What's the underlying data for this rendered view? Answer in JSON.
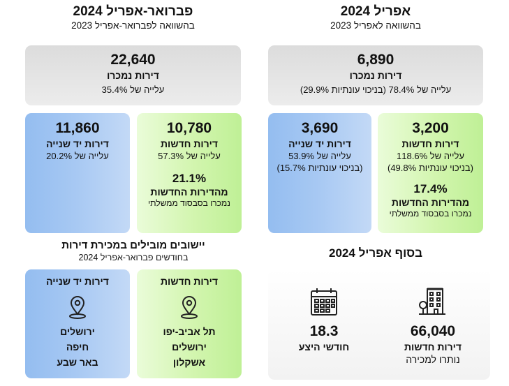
{
  "right_section": {
    "title": "אפריל 2024",
    "subtitle": "בהשוואה לאפריל 2023",
    "sold": {
      "value": "6,890",
      "label": "דירות נמכרו",
      "change": "עלייה של 78.4% (בניכוי עונתיות 29.9%)"
    },
    "new": {
      "value": "3,200",
      "label": "דירות חדשות",
      "change": "עלייה של 118.6%",
      "change2": "(בניכוי עונתיות 49.8%)",
      "pct": "17.4%",
      "pct_label": "מהדירות החדשות",
      "pct_note": "נמכרו בסבסוד ממשלתי"
    },
    "second_hand": {
      "value": "3,690",
      "label": "דירות יד שנייה",
      "change": "עלייה של 53.9%",
      "change2": "(בניכוי עונתיות 15.7%)"
    }
  },
  "left_section": {
    "title": "פברואר-אפריל 2024",
    "subtitle": "בהשוואה לפברואר-אפריל 2023",
    "sold": {
      "value": "22,640",
      "label": "דירות נמכרו",
      "change": "עלייה של 35.4%"
    },
    "new": {
      "value": "10,780",
      "label": "דירות חדשות",
      "change": "עלייה של 57.3%",
      "pct": "21.1%",
      "pct_label": "מהדירות החדשות",
      "pct_note": "נמכרו בסבסוד ממשלתי"
    },
    "second_hand": {
      "value": "11,860",
      "label": "דירות יד שנייה",
      "change": "עלייה של 20.2%"
    }
  },
  "end_april": {
    "title": "בסוף אפריל 2024",
    "apartments": {
      "value": "66,040",
      "label1": "דירות חדשות",
      "label2": "נותרו למכירה",
      "icon": "building-icon"
    },
    "months": {
      "value": "18.3",
      "label": "חודשי היצע",
      "icon": "calendar-icon"
    }
  },
  "leading": {
    "title": "יישובים מובילים במכירת דירות",
    "subtitle": "בחודשים פברואר-אפריל 2024",
    "new": {
      "label": "דירות חדשות",
      "cities": [
        "תל אביב-יפו",
        "ירושלים",
        "אשקלון"
      ],
      "icon": "location-pin-icon"
    },
    "second_hand": {
      "label": "דירות יד שנייה",
      "cities": [
        "ירושלים",
        "חיפה",
        "באר שבע"
      ],
      "icon": "location-pin-icon"
    }
  },
  "colors": {
    "gray": "#dcdcdc",
    "blue": "#a8c9f3",
    "green": "#d2f5ae"
  }
}
